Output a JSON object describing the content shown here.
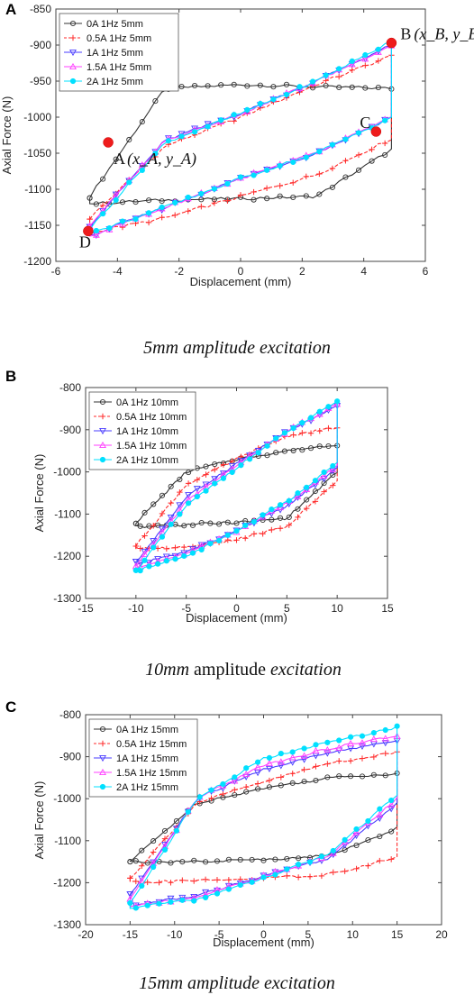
{
  "chart_data": [
    {
      "type": "line",
      "panel": "A",
      "xlabel": "Displacement (mm)",
      "ylabel": "Axial Force (N)",
      "xlim": [
        -6,
        6
      ],
      "ylim": [
        -1200,
        -850
      ],
      "xticks": [
        "-6",
        "-4",
        "-2",
        "0",
        "2",
        "4",
        "6"
      ],
      "yticks": [
        "-850",
        "-900",
        "-950",
        "-1000",
        "-1050",
        "-1100",
        "-1150",
        "-1200"
      ],
      "legend_position": "top-left",
      "caption": "5mm amplitude excitation",
      "amplitude": 5,
      "series": [
        {
          "name": "0A 1Hz 5mm",
          "color": "#333333",
          "marker": "circle",
          "dash": "solid",
          "x_range": [
            -4.9,
            4.9
          ],
          "upper_y": [
            -1110,
            -960,
            -955,
            -958,
            -960
          ],
          "lower_y": [
            -1120,
            -1115,
            -1113,
            -1110,
            -1045
          ]
        },
        {
          "name": "0.5A 1Hz 5mm",
          "color": "#ff2a2a",
          "marker": "plus",
          "dash": "dashed",
          "x_range": [
            -4.9,
            4.9
          ],
          "upper_y": [
            -1140,
            -1040,
            -1000,
            -955,
            -915
          ],
          "lower_y": [
            -1160,
            -1140,
            -1110,
            -1080,
            -1030
          ]
        },
        {
          "name": "1A 1Hz 5mm",
          "color": "#4a3cff",
          "marker": "triangle-down",
          "dash": "solid",
          "x_range": [
            -4.9,
            4.9
          ],
          "upper_y": [
            -1150,
            -1032,
            -995,
            -950,
            -900
          ],
          "lower_y": [
            -1165,
            -1125,
            -1085,
            -1050,
            -1000
          ]
        },
        {
          "name": "1.5A 1Hz 5mm",
          "color": "#ff40ff",
          "marker": "triangle-up",
          "dash": "solid",
          "x_range": [
            -4.9,
            4.9
          ],
          "upper_y": [
            -1150,
            -1032,
            -995,
            -950,
            -900
          ],
          "lower_y": [
            -1165,
            -1125,
            -1085,
            -1050,
            -1000
          ]
        },
        {
          "name": "2A 1Hz 5mm",
          "color": "#00e0ff",
          "marker": "circle-filled",
          "dash": "solid",
          "x_range": [
            -4.9,
            4.9
          ],
          "upper_y": [
            -1155,
            -1035,
            -995,
            -950,
            -895
          ],
          "lower_y": [
            -1162,
            -1125,
            -1085,
            -1050,
            -1000
          ]
        }
      ],
      "points": [
        {
          "name": "A",
          "label": "A",
          "coord": "(x_A, y_A)",
          "x": -4.3,
          "y": -1035
        },
        {
          "name": "B",
          "label": "B",
          "coord": "(x_B, y_B)",
          "x": 4.9,
          "y": -897
        },
        {
          "name": "C",
          "label": "C",
          "coord": "",
          "x": 4.4,
          "y": -1020
        },
        {
          "name": "D",
          "label": "D",
          "coord": "",
          "x": -4.95,
          "y": -1158
        }
      ]
    },
    {
      "type": "line",
      "panel": "B",
      "xlabel": "Displacement (mm)",
      "ylabel": "Axial Force (N)",
      "xlim": [
        -15,
        15
      ],
      "ylim": [
        -1300,
        -800
      ],
      "xticks": [
        "-15",
        "-10",
        "-5",
        "0",
        "5",
        "10",
        "15"
      ],
      "yticks": [
        "-800",
        "-900",
        "-1000",
        "-1100",
        "-1200",
        "-1300"
      ],
      "legend_position": "top-left",
      "caption_emph": "10mm",
      "caption_mid": " amplitude ",
      "caption_tail": "excitation",
      "amplitude": 10,
      "series": [
        {
          "name": "0A 1Hz 10mm",
          "color": "#333333",
          "marker": "circle",
          "dash": "solid",
          "x_range": [
            -10,
            10
          ],
          "upper_y": [
            -1120,
            -1000,
            -970,
            -950,
            -935
          ],
          "lower_y": [
            -1130,
            -1125,
            -1120,
            -1110,
            -1000
          ]
        },
        {
          "name": "0.5A 1Hz 10mm",
          "color": "#ff2a2a",
          "marker": "plus",
          "dash": "dashed",
          "x_range": [
            -10,
            10
          ],
          "upper_y": [
            -1175,
            -1030,
            -970,
            -915,
            -895
          ],
          "lower_y": [
            -1180,
            -1180,
            -1160,
            -1130,
            -1020
          ]
        },
        {
          "name": "1A 1Hz 10mm",
          "color": "#4a3cff",
          "marker": "triangle-down",
          "dash": "solid",
          "x_range": [
            -10,
            10
          ],
          "upper_y": [
            -1215,
            -1060,
            -980,
            -905,
            -845
          ],
          "lower_y": [
            -1220,
            -1190,
            -1140,
            -1080,
            -990
          ]
        },
        {
          "name": "1.5A 1Hz 10mm",
          "color": "#ff40ff",
          "marker": "triangle-up",
          "dash": "solid",
          "x_range": [
            -10,
            10
          ],
          "upper_y": [
            -1225,
            -1070,
            -985,
            -905,
            -840
          ],
          "lower_y": [
            -1225,
            -1195,
            -1140,
            -1075,
            -985
          ]
        },
        {
          "name": "2A 1Hz 10mm",
          "color": "#00e0ff",
          "marker": "circle-filled",
          "dash": "solid",
          "x_range": [
            -10,
            10
          ],
          "upper_y": [
            -1235,
            -1080,
            -990,
            -905,
            -835
          ],
          "lower_y": [
            -1235,
            -1200,
            -1140,
            -1070,
            -980
          ]
        }
      ]
    },
    {
      "type": "line",
      "panel": "C",
      "xlabel": "Displacement (mm)",
      "ylabel": "Axial Force (N)",
      "xlim": [
        -20,
        20
      ],
      "ylim": [
        -1300,
        -800
      ],
      "xticks": [
        "-20",
        "-15",
        "-10",
        "-5",
        "0",
        "5",
        "10",
        "15",
        "20"
      ],
      "yticks": [
        "-800",
        "-900",
        "-1000",
        "-1100",
        "-1200",
        "-1300"
      ],
      "legend_position": "top-left",
      "caption": "15mm amplitude excitation",
      "amplitude": 15,
      "series": [
        {
          "name": "0A 1Hz 15mm",
          "color": "#333333",
          "marker": "circle",
          "dash": "solid",
          "x_range": [
            -15,
            15
          ],
          "upper_y": [
            -1150,
            -1010,
            -975,
            -950,
            -940
          ],
          "lower_y": [
            -1150,
            -1150,
            -1145,
            -1135,
            -1070
          ]
        },
        {
          "name": "0.5A 1Hz 15mm",
          "color": "#ff2a2a",
          "marker": "plus",
          "dash": "dashed",
          "x_range": [
            -15,
            15
          ],
          "upper_y": [
            -1190,
            -1010,
            -960,
            -915,
            -890
          ],
          "lower_y": [
            -1200,
            -1195,
            -1190,
            -1180,
            -1140
          ]
        },
        {
          "name": "1A 1Hz 15mm",
          "color": "#4a3cff",
          "marker": "triangle-down",
          "dash": "solid",
          "x_range": [
            -15,
            15
          ],
          "upper_y": [
            -1230,
            -1000,
            -930,
            -890,
            -860
          ],
          "lower_y": [
            -1255,
            -1230,
            -1185,
            -1140,
            -1010
          ]
        },
        {
          "name": "1.5A 1Hz 15mm",
          "color": "#ff40ff",
          "marker": "triangle-up",
          "dash": "solid",
          "x_range": [
            -15,
            15
          ],
          "upper_y": [
            -1240,
            -1000,
            -920,
            -880,
            -850
          ],
          "lower_y": [
            -1255,
            -1235,
            -1185,
            -1135,
            -1000
          ]
        },
        {
          "name": "2A 1Hz 15mm",
          "color": "#00e0ff",
          "marker": "circle-filled",
          "dash": "solid",
          "x_range": [
            -15,
            15
          ],
          "upper_y": [
            -1250,
            -1000,
            -905,
            -865,
            -830
          ],
          "lower_y": [
            -1260,
            -1240,
            -1190,
            -1130,
            -990
          ]
        }
      ]
    }
  ]
}
